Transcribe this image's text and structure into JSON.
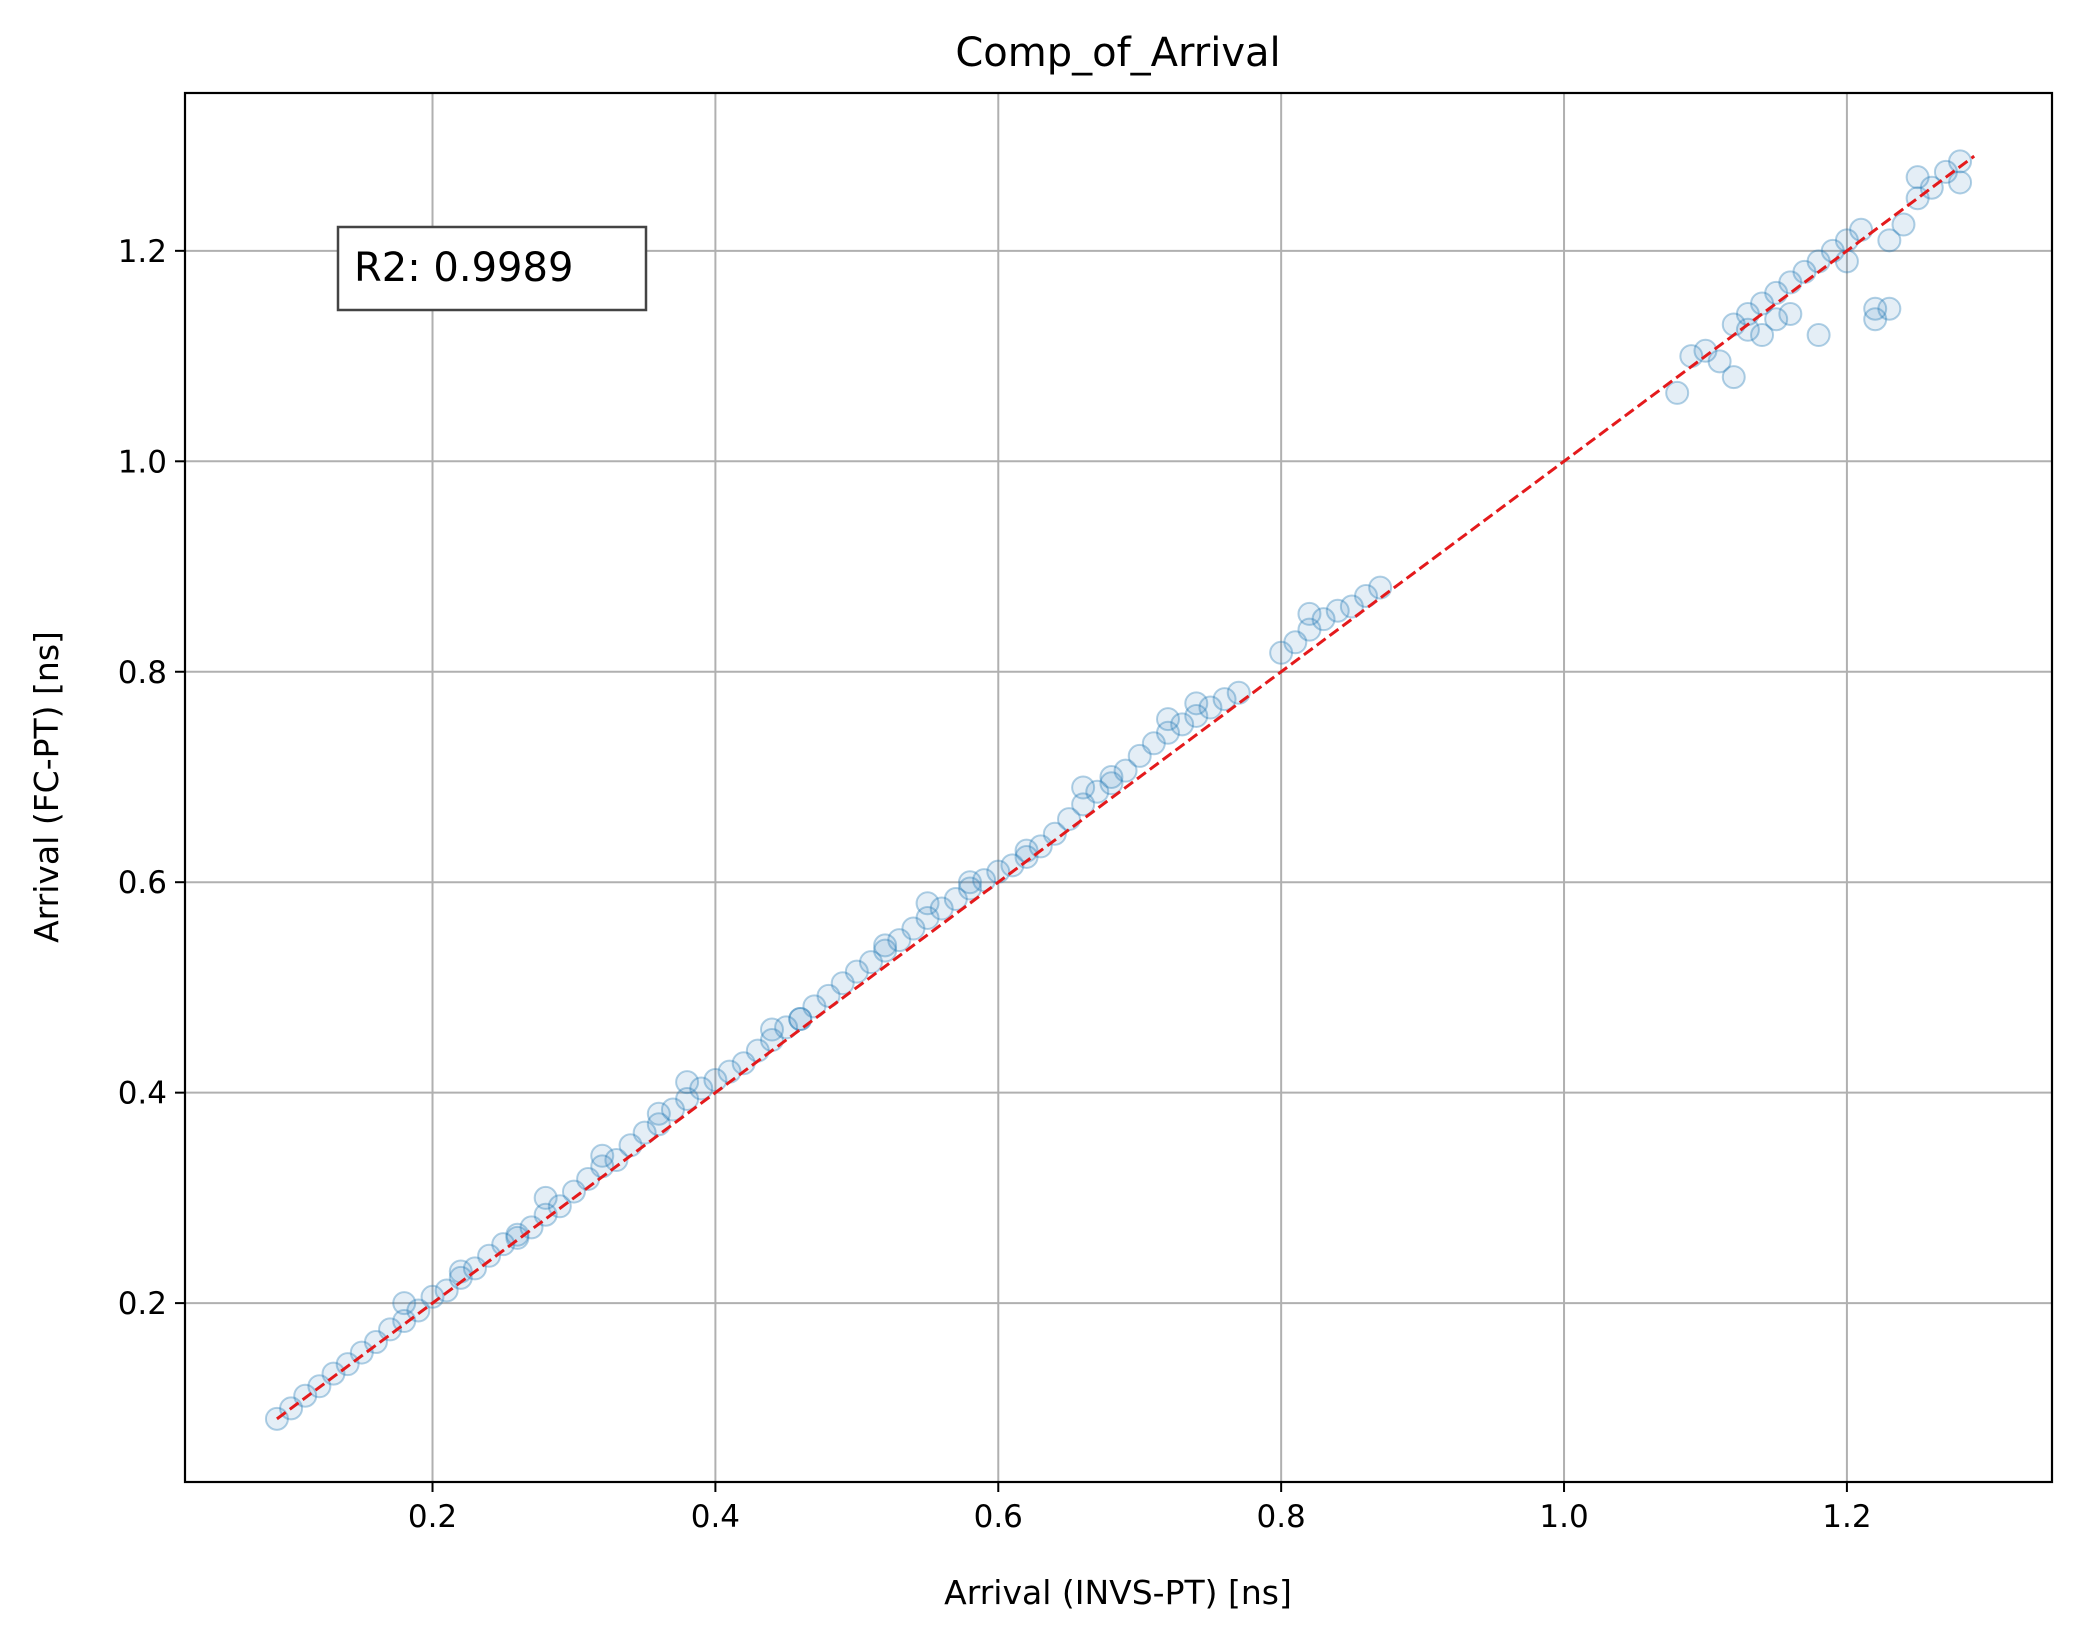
{
  "chart_data": {
    "type": "scatter",
    "title": "Comp_of_Arrival",
    "xlabel": "Arrival (INVS-PT) [ns]",
    "ylabel": "Arrival (FC-PT) [ns]",
    "xlim": [
      0.025,
      1.345
    ],
    "ylim": [
      0.03,
      1.35
    ],
    "xticks": [
      0.2,
      0.4,
      0.6,
      0.8,
      1.0,
      1.2
    ],
    "xtick_labels": [
      "0.2",
      "0.4",
      "0.6",
      "0.8",
      "1.0",
      "1.2"
    ],
    "yticks": [
      0.2,
      0.4,
      0.6,
      0.8,
      1.0,
      1.2
    ],
    "ytick_labels": [
      "0.2",
      "0.4",
      "0.6",
      "0.8",
      "1.0",
      "1.2"
    ],
    "grid": true,
    "annotation": {
      "text": "R2: 0.9989",
      "position": "top-left"
    },
    "marker_color": "#1f77b4",
    "marker_alpha": 0.12,
    "reference_line": {
      "style": "dashed",
      "color": "#e41a1c",
      "from": [
        0.09,
        0.09
      ],
      "to": [
        1.29,
        1.29
      ]
    },
    "series": [
      {
        "points": [
          [
            0.09,
            0.09
          ],
          [
            0.1,
            0.1
          ],
          [
            0.11,
            0.112
          ],
          [
            0.12,
            0.121
          ],
          [
            0.13,
            0.133
          ],
          [
            0.14,
            0.142
          ],
          [
            0.15,
            0.153
          ],
          [
            0.16,
            0.163
          ],
          [
            0.17,
            0.175
          ],
          [
            0.18,
            0.183
          ],
          [
            0.19,
            0.193
          ],
          [
            0.2,
            0.206
          ],
          [
            0.21,
            0.212
          ],
          [
            0.22,
            0.224
          ],
          [
            0.23,
            0.233
          ],
          [
            0.24,
            0.245
          ],
          [
            0.25,
            0.256
          ],
          [
            0.26,
            0.262
          ],
          [
            0.27,
            0.272
          ],
          [
            0.28,
            0.284
          ],
          [
            0.29,
            0.292
          ],
          [
            0.3,
            0.306
          ],
          [
            0.31,
            0.318
          ],
          [
            0.32,
            0.33
          ],
          [
            0.33,
            0.336
          ],
          [
            0.34,
            0.35
          ],
          [
            0.35,
            0.362
          ],
          [
            0.36,
            0.37
          ],
          [
            0.37,
            0.384
          ],
          [
            0.38,
            0.394
          ],
          [
            0.39,
            0.404
          ],
          [
            0.4,
            0.412
          ],
          [
            0.41,
            0.42
          ],
          [
            0.42,
            0.428
          ],
          [
            0.43,
            0.44
          ],
          [
            0.44,
            0.45
          ],
          [
            0.45,
            0.462
          ],
          [
            0.46,
            0.47
          ],
          [
            0.47,
            0.482
          ],
          [
            0.48,
            0.492
          ],
          [
            0.49,
            0.504
          ],
          [
            0.5,
            0.515
          ],
          [
            0.51,
            0.524
          ],
          [
            0.52,
            0.535
          ],
          [
            0.53,
            0.545
          ],
          [
            0.54,
            0.556
          ],
          [
            0.55,
            0.566
          ],
          [
            0.56,
            0.575
          ],
          [
            0.57,
            0.584
          ],
          [
            0.58,
            0.594
          ],
          [
            0.59,
            0.602
          ],
          [
            0.6,
            0.61
          ],
          [
            0.61,
            0.616
          ],
          [
            0.62,
            0.624
          ],
          [
            0.63,
            0.634
          ],
          [
            0.64,
            0.646
          ],
          [
            0.65,
            0.66
          ],
          [
            0.66,
            0.674
          ],
          [
            0.67,
            0.686
          ],
          [
            0.68,
            0.694
          ],
          [
            0.69,
            0.706
          ],
          [
            0.7,
            0.72
          ],
          [
            0.71,
            0.732
          ],
          [
            0.72,
            0.742
          ],
          [
            0.73,
            0.75
          ],
          [
            0.74,
            0.758
          ],
          [
            0.75,
            0.766
          ],
          [
            0.76,
            0.774
          ],
          [
            0.77,
            0.78
          ],
          [
            0.8,
            0.818
          ],
          [
            0.81,
            0.828
          ],
          [
            0.82,
            0.84
          ],
          [
            0.83,
            0.85
          ],
          [
            0.84,
            0.858
          ],
          [
            0.85,
            0.862
          ],
          [
            0.86,
            0.872
          ],
          [
            0.87,
            0.88
          ],
          [
            0.18,
            0.2
          ],
          [
            0.22,
            0.23
          ],
          [
            0.26,
            0.265
          ],
          [
            0.28,
            0.3
          ],
          [
            0.32,
            0.34
          ],
          [
            0.36,
            0.38
          ],
          [
            0.38,
            0.41
          ],
          [
            0.44,
            0.46
          ],
          [
            0.46,
            0.47
          ],
          [
            0.52,
            0.54
          ],
          [
            0.55,
            0.58
          ],
          [
            0.58,
            0.6
          ],
          [
            0.62,
            0.63
          ],
          [
            0.66,
            0.69
          ],
          [
            0.68,
            0.7
          ],
          [
            0.72,
            0.755
          ],
          [
            0.74,
            0.77
          ],
          [
            0.82,
            0.855
          ],
          [
            1.08,
            1.065
          ],
          [
            1.09,
            1.1
          ],
          [
            1.1,
            1.105
          ],
          [
            1.11,
            1.095
          ],
          [
            1.12,
            1.08
          ],
          [
            1.12,
            1.13
          ],
          [
            1.13,
            1.125
          ],
          [
            1.13,
            1.14
          ],
          [
            1.14,
            1.12
          ],
          [
            1.14,
            1.15
          ],
          [
            1.15,
            1.135
          ],
          [
            1.15,
            1.16
          ],
          [
            1.16,
            1.17
          ],
          [
            1.16,
            1.14
          ],
          [
            1.17,
            1.18
          ],
          [
            1.18,
            1.19
          ],
          [
            1.18,
            1.12
          ],
          [
            1.19,
            1.2
          ],
          [
            1.2,
            1.21
          ],
          [
            1.2,
            1.19
          ],
          [
            1.21,
            1.22
          ],
          [
            1.22,
            1.145
          ],
          [
            1.22,
            1.135
          ],
          [
            1.23,
            1.145
          ],
          [
            1.23,
            1.21
          ],
          [
            1.24,
            1.225
          ],
          [
            1.25,
            1.25
          ],
          [
            1.25,
            1.27
          ],
          [
            1.26,
            1.26
          ],
          [
            1.27,
            1.275
          ],
          [
            1.28,
            1.285
          ],
          [
            1.28,
            1.265
          ]
        ]
      }
    ]
  }
}
